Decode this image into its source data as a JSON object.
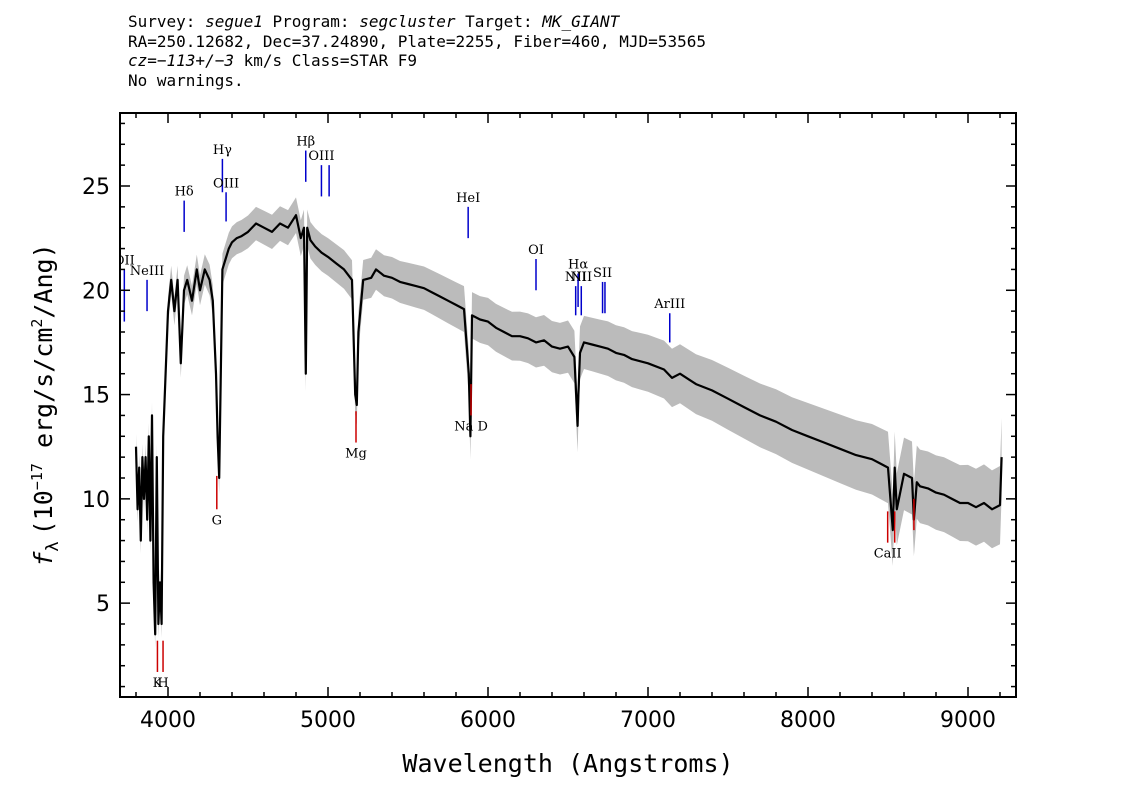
{
  "header": {
    "line1": {
      "survey_label": "Survey: ",
      "survey": "segue1",
      "program_label": " Program: ",
      "program": "segcluster",
      "target_label": " Target: ",
      "target": "MK_GIANT"
    },
    "line2": "RA=250.12682, Dec=37.24890, Plate=2255, Fiber=460, MJD=53565",
    "line3": {
      "cz": "cz=−113+/−3",
      "rest": " km/s Class=STAR F9"
    },
    "line4": "No warnings."
  },
  "chart_data": {
    "type": "line",
    "xlabel": "Wavelength (Angstroms)",
    "ylabel": "f_λ (10^-17 erg/s/cm^2/Ang)",
    "ylabel_parts": {
      "f": "f",
      "lambda": "λ",
      "pre": "(10",
      "exp": "−17",
      "mid": " erg/s/cm",
      "exp2": "2",
      "post": "/Ang)"
    },
    "xlim": [
      3700,
      9300
    ],
    "ylim": [
      0.5,
      28.5
    ],
    "xticks": [
      4000,
      5000,
      6000,
      7000,
      8000,
      9000
    ],
    "yticks": [
      5,
      10,
      15,
      20,
      25
    ],
    "series": [
      {
        "role": "flux",
        "color": "#000000",
        "x": [
          3800,
          3810,
          3820,
          3830,
          3840,
          3850,
          3860,
          3870,
          3880,
          3890,
          3900,
          3910,
          3920,
          3930,
          3940,
          3950,
          3960,
          3970,
          3980,
          3990,
          4000,
          4020,
          4040,
          4060,
          4080,
          4100,
          4120,
          4150,
          4180,
          4200,
          4230,
          4260,
          4280,
          4300,
          4310,
          4320,
          4330,
          4340,
          4360,
          4380,
          4400,
          4430,
          4460,
          4500,
          4550,
          4600,
          4650,
          4700,
          4750,
          4800,
          4830,
          4850,
          4861,
          4870,
          4890,
          4920,
          4960,
          5000,
          5050,
          5100,
          5150,
          5170,
          5180,
          5190,
          5220,
          5270,
          5300,
          5350,
          5400,
          5450,
          5500,
          5550,
          5600,
          5650,
          5700,
          5750,
          5800,
          5850,
          5880,
          5890,
          5900,
          5950,
          6000,
          6050,
          6100,
          6150,
          6200,
          6250,
          6300,
          6350,
          6400,
          6450,
          6500,
          6540,
          6560,
          6565,
          6575,
          6600,
          6650,
          6700,
          6750,
          6800,
          6850,
          6900,
          6950,
          7000,
          7100,
          7150,
          7200,
          7300,
          7400,
          7500,
          7600,
          7700,
          7800,
          7900,
          8000,
          8100,
          8200,
          8300,
          8400,
          8450,
          8500,
          8530,
          8542,
          8555,
          8600,
          8650,
          8662,
          8680,
          8700,
          8750,
          8800,
          8850,
          8900,
          8950,
          9000,
          9050,
          9100,
          9150,
          9200,
          9210
        ],
        "values": [
          12.5,
          9.5,
          11.5,
          8,
          12,
          10,
          12,
          9,
          13,
          8,
          14,
          6,
          3.5,
          12,
          4,
          6,
          4,
          13,
          15,
          17,
          19,
          20.5,
          19,
          20.5,
          16.5,
          20,
          20.5,
          19.5,
          21,
          20,
          21,
          20.5,
          19.5,
          16,
          13,
          11,
          16,
          21,
          21.5,
          22,
          22.3,
          22.5,
          22.6,
          22.8,
          23.2,
          23,
          22.8,
          23.2,
          23,
          23.6,
          22.5,
          23,
          16,
          23,
          22.4,
          22.1,
          21.8,
          21.6,
          21.3,
          21,
          20.5,
          15,
          14.5,
          18,
          20.5,
          20.6,
          21,
          20.7,
          20.6,
          20.4,
          20.3,
          20.2,
          20.1,
          19.9,
          19.7,
          19.5,
          19.3,
          19.1,
          16,
          13,
          18.8,
          18.6,
          18.5,
          18.2,
          18,
          17.8,
          17.8,
          17.7,
          17.5,
          17.6,
          17.3,
          17.2,
          17.3,
          16.8,
          13.5,
          15,
          17,
          17.5,
          17.4,
          17.3,
          17.2,
          17,
          16.9,
          16.7,
          16.6,
          16.5,
          16.2,
          15.8,
          16,
          15.5,
          15.2,
          14.8,
          14.4,
          14,
          13.7,
          13.3,
          13,
          12.7,
          12.4,
          12.1,
          11.9,
          11.7,
          11.5,
          8.5,
          11.5,
          9.5,
          11.2,
          11,
          9,
          10.8,
          10.6,
          10.5,
          10.3,
          10.2,
          10,
          9.8,
          9.8,
          9.6,
          9.8,
          9.5,
          9.7,
          12
        ]
      },
      {
        "role": "error-band",
        "color": "#bbbbbb"
      }
    ],
    "emission_lines": [
      {
        "label": "OII",
        "x": 3727,
        "y_lo": 18.5,
        "y_hi": 21.0,
        "color": "#0000cc"
      },
      {
        "label": "NeIII",
        "x": 3869,
        "y_lo": 19.0,
        "y_hi": 20.5,
        "color": "#0000cc"
      },
      {
        "label": "Hδ",
        "x": 4101,
        "y_lo": 22.8,
        "y_hi": 24.3,
        "color": "#0000cc"
      },
      {
        "label": "Hγ",
        "x": 4340,
        "y_lo": 24.7,
        "y_hi": 26.3,
        "color": "#0000cc"
      },
      {
        "label": "OIII",
        "x": 4363,
        "y_lo": 23.3,
        "y_hi": 24.7,
        "color": "#0000cc"
      },
      {
        "label": "Hβ",
        "x": 4861,
        "y_lo": 25.2,
        "y_hi": 26.7,
        "color": "#0000cc"
      },
      {
        "label": "OIII",
        "x": 4959,
        "y_lo": 24.5,
        "y_hi": 26.0,
        "color": "#0000cc"
      },
      {
        "label": "",
        "x": 5007,
        "y_lo": 24.5,
        "y_hi": 26.0,
        "color": "#0000cc"
      },
      {
        "label": "HeI",
        "x": 5876,
        "y_lo": 22.5,
        "y_hi": 24.0,
        "color": "#0000cc"
      },
      {
        "label": "OI",
        "x": 6300,
        "y_lo": 20.0,
        "y_hi": 21.5,
        "color": "#0000cc"
      },
      {
        "label": "NII",
        "x": 6548,
        "y_lo": 18.8,
        "y_hi": 20.2,
        "color": "#0000cc"
      },
      {
        "label": "Hα",
        "x": 6563,
        "y_lo": 19.2,
        "y_hi": 20.8,
        "color": "#0000cc"
      },
      {
        "label": "NII",
        "x": 6583,
        "y_lo": 18.8,
        "y_hi": 20.2,
        "color": "#0000cc"
      },
      {
        "label": "SII",
        "x": 6716,
        "y_lo": 18.9,
        "y_hi": 20.4,
        "color": "#0000cc"
      },
      {
        "label": "",
        "x": 6731,
        "y_lo": 18.9,
        "y_hi": 20.4,
        "color": "#0000cc"
      },
      {
        "label": "ArIII",
        "x": 7136,
        "y_lo": 17.5,
        "y_hi": 18.9,
        "color": "#0000cc"
      }
    ],
    "absorption_lines": [
      {
        "label": "K",
        "x": 3934,
        "y_lo": 1.7,
        "y_hi": 3.2,
        "color": "#cc0000"
      },
      {
        "label": "H",
        "x": 3969,
        "y_lo": 1.7,
        "y_hi": 3.2,
        "color": "#cc0000"
      },
      {
        "label": "G",
        "x": 4305,
        "y_lo": 9.5,
        "y_hi": 11.1,
        "color": "#cc0000"
      },
      {
        "label": "Mg",
        "x": 5175,
        "y_lo": 12.7,
        "y_hi": 14.2,
        "color": "#cc0000"
      },
      {
        "label": "Na D",
        "x": 5894,
        "y_lo": 14.0,
        "y_hi": 15.5,
        "color": "#cc0000"
      },
      {
        "label": "CaII",
        "x": 8498,
        "y_lo": 7.9,
        "y_hi": 9.4,
        "color": "#cc0000"
      },
      {
        "label": "",
        "x": 8542,
        "y_lo": 7.9,
        "y_hi": 9.4,
        "color": "#cc0000"
      },
      {
        "label": "",
        "x": 8662,
        "y_lo": 8.5,
        "y_hi": 10.0,
        "color": "#cc0000"
      }
    ]
  }
}
